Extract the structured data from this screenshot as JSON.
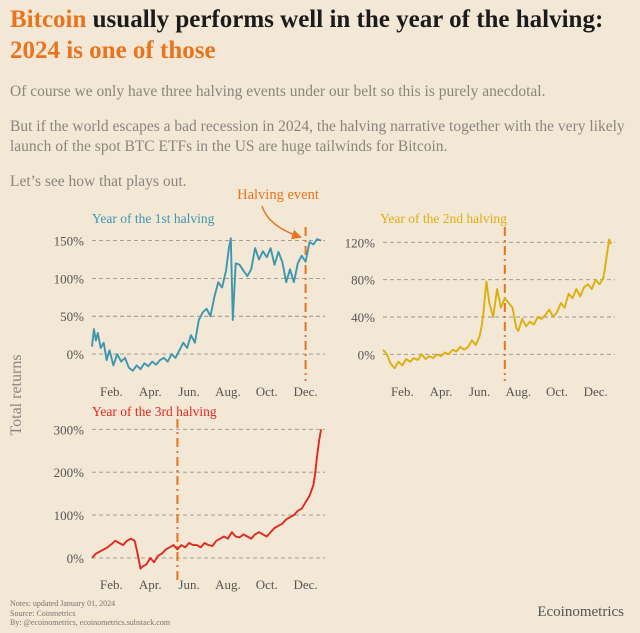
{
  "header": {
    "title_part1": "Bitcoin",
    "title_part2": " usually performs well in the year of the halving: ",
    "title_part3": "2024 is one of those",
    "paragraph1": "Of course we only have three halving events under our belt so this is purely anecdotal.",
    "paragraph2": "But if the world escapes a bad recession in 2024, the halving narrative together with the very likely launch of the spot BTC ETFs in the US are huge tailwinds for Bitcoin.",
    "paragraph3": "Let’s see how that plays out."
  },
  "annotation": {
    "halving_event": "Halving event"
  },
  "shared_ylabel": "Total returns",
  "footer": {
    "note1": "Notes: updated January 01, 2024",
    "note2": "Source: Coinmetrics",
    "note3": "By: @ecoinometrics, ecoinometrics.substack.com",
    "brand": "Ecoinometrics"
  },
  "colors": {
    "accent": "#e8741e",
    "first": "#3d97b0",
    "second": "#dbb00e",
    "third": "#df2a1c"
  },
  "chart_data": [
    {
      "type": "line",
      "title": "Year of the 1st halving",
      "color": "#3d97b0",
      "xlabel": "",
      "ylabel": "Total returns",
      "x_ticks": [
        "Feb.",
        "Apr.",
        "Jun.",
        "Aug.",
        "Oct.",
        "Dec."
      ],
      "x_tick_months": [
        2,
        4,
        6,
        8,
        10,
        12
      ],
      "y_ticks": [
        "0%",
        "50%",
        "100%",
        "150%"
      ],
      "y_tick_values": [
        0,
        50,
        100,
        150
      ],
      "xlim": [
        1,
        13
      ],
      "ylim": [
        -25,
        160
      ],
      "grid": "horizontal dashed",
      "halving_month": 12.0,
      "series": [
        {
          "x": [
            1.0,
            1.1,
            1.2,
            1.3,
            1.45,
            1.6,
            1.75,
            1.9,
            2.1,
            2.3,
            2.5,
            2.7,
            2.9,
            3.1,
            3.3,
            3.5,
            3.7,
            3.9,
            4.1,
            4.3,
            4.5,
            4.7,
            4.9,
            5.1,
            5.3,
            5.5,
            5.7,
            5.9,
            6.1,
            6.3,
            6.5,
            6.7,
            6.9,
            7.1,
            7.3,
            7.5,
            7.7,
            7.9,
            8.05,
            8.15,
            8.25,
            8.4,
            8.6,
            8.8,
            9.0,
            9.2,
            9.4,
            9.6,
            9.8,
            10.0,
            10.2,
            10.4,
            10.6,
            10.8,
            11.0,
            11.2,
            11.4,
            11.6,
            11.8,
            12.0,
            12.2,
            12.4,
            12.6,
            12.8
          ],
          "y": [
            10,
            33,
            18,
            28,
            8,
            15,
            -8,
            5,
            -15,
            0,
            -10,
            -5,
            -18,
            -22,
            -15,
            -20,
            -12,
            -16,
            -10,
            -14,
            -8,
            -5,
            -10,
            0,
            -5,
            5,
            15,
            8,
            25,
            15,
            45,
            55,
            60,
            50,
            75,
            95,
            88,
            110,
            140,
            153,
            45,
            120,
            118,
            110,
            103,
            112,
            140,
            125,
            136,
            128,
            140,
            118,
            135,
            122,
            95,
            112,
            95,
            120,
            130,
            122,
            148,
            145,
            152,
            150
          ]
        }
      ]
    },
    {
      "type": "line",
      "title": "Year of the 2nd halving",
      "color": "#dbb00e",
      "xlabel": "",
      "ylabel": "",
      "x_ticks": [
        "Feb.",
        "Apr.",
        "Jun.",
        "Aug.",
        "Oct.",
        "Dec."
      ],
      "x_tick_months": [
        2,
        4,
        6,
        8,
        10,
        12
      ],
      "y_ticks": [
        "0%",
        "40%",
        "80%",
        "120%"
      ],
      "y_tick_values": [
        0,
        40,
        80,
        120
      ],
      "xlim": [
        1,
        13
      ],
      "ylim": [
        -20,
        130
      ],
      "grid": "horizontal dashed",
      "halving_month": 7.3,
      "series": [
        {
          "x": [
            1.0,
            1.2,
            1.4,
            1.6,
            1.8,
            2.0,
            2.2,
            2.4,
            2.6,
            2.8,
            3.0,
            3.2,
            3.4,
            3.6,
            3.8,
            4.0,
            4.2,
            4.4,
            4.6,
            4.8,
            5.0,
            5.2,
            5.4,
            5.6,
            5.8,
            6.0,
            6.1,
            6.2,
            6.35,
            6.5,
            6.7,
            6.9,
            7.1,
            7.3,
            7.5,
            7.7,
            7.9,
            8.0,
            8.2,
            8.4,
            8.6,
            8.8,
            9.0,
            9.2,
            9.4,
            9.6,
            9.8,
            10.0,
            10.2,
            10.4,
            10.6,
            10.8,
            11.0,
            11.2,
            11.4,
            11.6,
            11.8,
            12.0,
            12.2,
            12.4,
            12.5,
            12.6,
            12.7,
            12.8
          ],
          "y": [
            5,
            0,
            -10,
            -15,
            -8,
            -12,
            -5,
            -8,
            -4,
            -6,
            0,
            -5,
            -2,
            -4,
            0,
            -2,
            2,
            0,
            5,
            3,
            8,
            5,
            8,
            15,
            10,
            20,
            30,
            45,
            78,
            55,
            40,
            70,
            50,
            60,
            55,
            50,
            28,
            25,
            38,
            30,
            35,
            32,
            40,
            38,
            42,
            48,
            40,
            45,
            55,
            50,
            65,
            60,
            70,
            62,
            72,
            75,
            70,
            80,
            75,
            82,
            95,
            110,
            123,
            118
          ]
        }
      ]
    },
    {
      "type": "line",
      "title": "Year of the 3rd halving",
      "color": "#df2a1c",
      "xlabel": "",
      "ylabel": "",
      "x_ticks": [
        "Feb.",
        "Apr.",
        "Jun.",
        "Aug.",
        "Oct.",
        "Dec."
      ],
      "x_tick_months": [
        2,
        4,
        6,
        8,
        10,
        12
      ],
      "y_ticks": [
        "0%",
        "100%",
        "200%",
        "300%"
      ],
      "y_tick_values": [
        0,
        100,
        200,
        300
      ],
      "xlim": [
        1,
        13
      ],
      "ylim": [
        -35,
        310
      ],
      "grid": "horizontal dashed",
      "halving_month": 5.4,
      "series": [
        {
          "x": [
            1.0,
            1.2,
            1.4,
            1.6,
            1.8,
            2.0,
            2.2,
            2.4,
            2.6,
            2.8,
            3.0,
            3.2,
            3.35,
            3.5,
            3.6,
            3.8,
            4.0,
            4.2,
            4.4,
            4.6,
            4.8,
            5.0,
            5.2,
            5.4,
            5.6,
            5.8,
            6.0,
            6.2,
            6.4,
            6.6,
            6.8,
            7.0,
            7.2,
            7.4,
            7.6,
            7.8,
            8.0,
            8.2,
            8.4,
            8.6,
            8.8,
            9.0,
            9.2,
            9.4,
            9.6,
            9.8,
            10.0,
            10.2,
            10.4,
            10.6,
            10.8,
            11.0,
            11.2,
            11.4,
            11.6,
            11.8,
            12.0,
            12.2,
            12.4,
            12.5,
            12.6,
            12.7,
            12.8
          ],
          "y": [
            0,
            10,
            15,
            20,
            25,
            32,
            40,
            35,
            30,
            40,
            45,
            40,
            10,
            -25,
            -20,
            -15,
            0,
            -10,
            5,
            10,
            20,
            25,
            30,
            20,
            30,
            25,
            35,
            30,
            30,
            25,
            35,
            30,
            28,
            40,
            45,
            50,
            45,
            60,
            50,
            48,
            55,
            50,
            45,
            55,
            60,
            55,
            50,
            60,
            70,
            75,
            80,
            90,
            95,
            100,
            110,
            115,
            130,
            145,
            170,
            200,
            240,
            275,
            300
          ]
        }
      ]
    }
  ]
}
